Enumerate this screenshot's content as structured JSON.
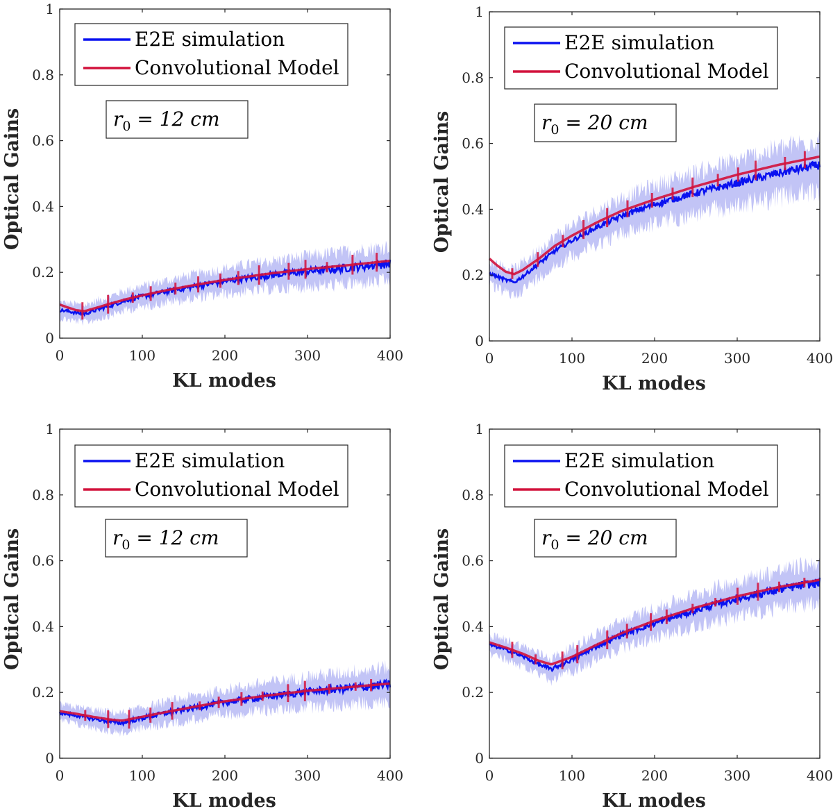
{
  "colors": {
    "e2e": "#0a12f0",
    "band": "#8f93ee",
    "model": "#d2123c"
  },
  "chart_data": [
    {
      "type": "line",
      "xlabel": "KL modes",
      "ylabel": "Optical Gains",
      "xlim": [
        0,
        400
      ],
      "ylim": [
        0,
        1
      ],
      "xticks": [
        "0",
        "100",
        "200",
        "300",
        "400"
      ],
      "yticks": [
        "0",
        "0.2",
        "0.4",
        "0.6",
        "0.8",
        "1"
      ],
      "legend": [
        "E2E simulation",
        "Convolutional Model"
      ],
      "legend_position": "top-left",
      "annotation": {
        "var": "r",
        "sub": "0",
        "rest": " = 12 cm"
      },
      "series": [
        {
          "name": "E2E simulation",
          "x": [
            0,
            10,
            20,
            30,
            40,
            60,
            80,
            100,
            130,
            160,
            200,
            250,
            300,
            350,
            400
          ],
          "values": [
            0.085,
            0.082,
            0.077,
            0.074,
            0.082,
            0.098,
            0.115,
            0.127,
            0.142,
            0.156,
            0.173,
            0.19,
            0.203,
            0.214,
            0.227
          ],
          "band_halfwidth": 0.06
        },
        {
          "name": "Convolutional Model",
          "x": [
            0,
            10,
            20,
            30,
            40,
            60,
            80,
            100,
            130,
            160,
            200,
            250,
            300,
            350,
            400
          ],
          "values": [
            0.102,
            0.093,
            0.085,
            0.082,
            0.089,
            0.104,
            0.118,
            0.13,
            0.146,
            0.16,
            0.177,
            0.195,
            0.21,
            0.222,
            0.235
          ]
        }
      ]
    },
    {
      "type": "line",
      "xlabel": "KL modes",
      "ylabel": "Optical Gains",
      "xlim": [
        0,
        400
      ],
      "ylim": [
        0,
        1
      ],
      "xticks": [
        "0",
        "100",
        "200",
        "300",
        "400"
      ],
      "yticks": [
        "0",
        "0.2",
        "0.4",
        "0.6",
        "0.8",
        "1"
      ],
      "legend": [
        "E2E simulation",
        "Convolutional Model"
      ],
      "legend_position": "top-left",
      "annotation": {
        "var": "r",
        "sub": "0",
        "rest": " = 20 cm"
      },
      "series": [
        {
          "name": "E2E simulation",
          "x": [
            0,
            10,
            20,
            30,
            40,
            60,
            80,
            100,
            130,
            160,
            200,
            250,
            300,
            350,
            400
          ],
          "values": [
            0.205,
            0.195,
            0.185,
            0.178,
            0.195,
            0.235,
            0.275,
            0.305,
            0.345,
            0.38,
            0.415,
            0.45,
            0.48,
            0.51,
            0.535
          ],
          "band_halfwidth": 0.09
        },
        {
          "name": "Convolutional Model",
          "x": [
            0,
            10,
            20,
            30,
            40,
            60,
            80,
            100,
            130,
            160,
            200,
            250,
            300,
            350,
            400
          ],
          "values": [
            0.25,
            0.228,
            0.21,
            0.203,
            0.215,
            0.25,
            0.29,
            0.32,
            0.36,
            0.395,
            0.43,
            0.47,
            0.505,
            0.535,
            0.56
          ]
        }
      ]
    },
    {
      "type": "line",
      "xlabel": "KL modes",
      "ylabel": "Optical Gains",
      "xlim": [
        0,
        400
      ],
      "ylim": [
        0,
        1
      ],
      "xticks": [
        "0",
        "100",
        "200",
        "300",
        "400"
      ],
      "yticks": [
        "0",
        "0.2",
        "0.4",
        "0.6",
        "0.8",
        "1"
      ],
      "legend": [
        "E2E simulation",
        "Convolutional Model"
      ],
      "legend_position": "top-left",
      "annotation": {
        "var": "r",
        "sub": "0",
        "rest": " = 12 cm"
      },
      "series": [
        {
          "name": "E2E simulation",
          "x": [
            0,
            20,
            40,
            60,
            75,
            100,
            130,
            160,
            200,
            250,
            300,
            350,
            400
          ],
          "values": [
            0.138,
            0.13,
            0.12,
            0.112,
            0.107,
            0.122,
            0.138,
            0.152,
            0.17,
            0.187,
            0.202,
            0.213,
            0.224
          ],
          "band_halfwidth": 0.06
        },
        {
          "name": "Convolutional Model",
          "x": [
            0,
            20,
            40,
            60,
            75,
            100,
            130,
            160,
            200,
            250,
            300,
            350,
            400
          ],
          "values": [
            0.143,
            0.135,
            0.126,
            0.118,
            0.114,
            0.126,
            0.141,
            0.155,
            0.173,
            0.19,
            0.205,
            0.216,
            0.227
          ]
        }
      ]
    },
    {
      "type": "line",
      "xlabel": "KL modes",
      "ylabel": "Optical Gains",
      "xlim": [
        0,
        400
      ],
      "ylim": [
        0,
        1
      ],
      "xticks": [
        "0",
        "100",
        "200",
        "300",
        "400"
      ],
      "yticks": [
        "0",
        "0.2",
        "0.4",
        "0.6",
        "0.8",
        "1"
      ],
      "legend": [
        "E2E simulation",
        "Convolutional Model"
      ],
      "legend_position": "top-left",
      "annotation": {
        "var": "r",
        "sub": "0",
        "rest": " = 20 cm"
      },
      "series": [
        {
          "name": "E2E simulation",
          "x": [
            0,
            20,
            40,
            60,
            75,
            100,
            130,
            160,
            200,
            250,
            300,
            350,
            400
          ],
          "values": [
            0.345,
            0.33,
            0.31,
            0.285,
            0.27,
            0.3,
            0.34,
            0.375,
            0.41,
            0.45,
            0.485,
            0.512,
            0.535
          ],
          "band_halfwidth": 0.07
        },
        {
          "name": "Convolutional Model",
          "x": [
            0,
            20,
            40,
            60,
            75,
            100,
            130,
            160,
            200,
            250,
            300,
            350,
            400
          ],
          "values": [
            0.352,
            0.336,
            0.318,
            0.296,
            0.285,
            0.308,
            0.345,
            0.38,
            0.418,
            0.458,
            0.492,
            0.52,
            0.542
          ]
        }
      ]
    }
  ]
}
